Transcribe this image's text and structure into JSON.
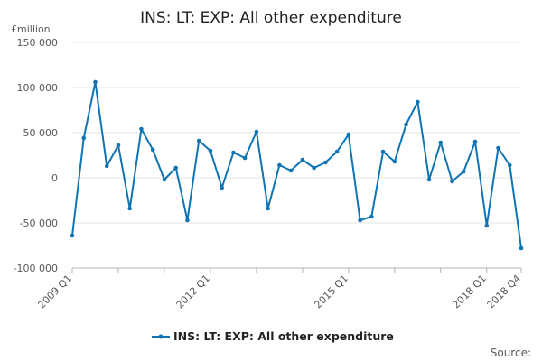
{
  "colors": {
    "series": "#0f74b3",
    "grid": "#e6e6e6",
    "axis": "#b3b3b3",
    "text": "#222222",
    "tick_text": "#595959"
  },
  "chart_data": {
    "type": "line",
    "title": "INS: LT: EXP: All other expenditure",
    "ylabel": "£million",
    "yticks": [
      -100000,
      -50000,
      0,
      50000,
      100000,
      150000
    ],
    "ytick_labels": [
      "-100 000",
      "-50 000",
      "0",
      "50 000",
      "100 000",
      "150 000"
    ],
    "ylim": [
      -100000,
      150000
    ],
    "grid": true,
    "legend_position": "bottom",
    "source_label": "Source:",
    "x_labels": [
      {
        "index": 0,
        "label": "2009 Q1"
      },
      {
        "index": 12,
        "label": "2012 Q1"
      },
      {
        "index": 24,
        "label": "2015 Q1"
      },
      {
        "index": 36,
        "label": "2018 Q1"
      },
      {
        "index": 39,
        "label": "2018 Q4"
      }
    ],
    "series": [
      {
        "name": "INS: LT: EXP: All other expenditure",
        "x": [
          "2009 Q1",
          "2009 Q2",
          "2009 Q3",
          "2009 Q4",
          "2010 Q1",
          "2010 Q2",
          "2010 Q3",
          "2010 Q4",
          "2011 Q1",
          "2011 Q2",
          "2011 Q3",
          "2011 Q4",
          "2012 Q1",
          "2012 Q2",
          "2012 Q3",
          "2012 Q4",
          "2013 Q1",
          "2013 Q2",
          "2013 Q3",
          "2013 Q4",
          "2014 Q1",
          "2014 Q2",
          "2014 Q3",
          "2014 Q4",
          "2015 Q1",
          "2015 Q2",
          "2015 Q3",
          "2015 Q4",
          "2016 Q1",
          "2016 Q2",
          "2016 Q3",
          "2016 Q4",
          "2017 Q1",
          "2017 Q2",
          "2017 Q3",
          "2017 Q4",
          "2018 Q1",
          "2018 Q2",
          "2018 Q3",
          "2018 Q4"
        ],
        "values": [
          -64000,
          44000,
          106000,
          13000,
          36000,
          -34000,
          54000,
          31000,
          -2000,
          11000,
          -47000,
          41000,
          30000,
          -11000,
          28000,
          22000,
          51000,
          -34000,
          14000,
          8000,
          20000,
          11000,
          17000,
          29000,
          48000,
          -47000,
          -43000,
          29000,
          18000,
          59000,
          84000,
          -2000,
          39000,
          -4000,
          7000,
          40000,
          -53000,
          33000,
          14000,
          -78000
        ]
      }
    ]
  }
}
